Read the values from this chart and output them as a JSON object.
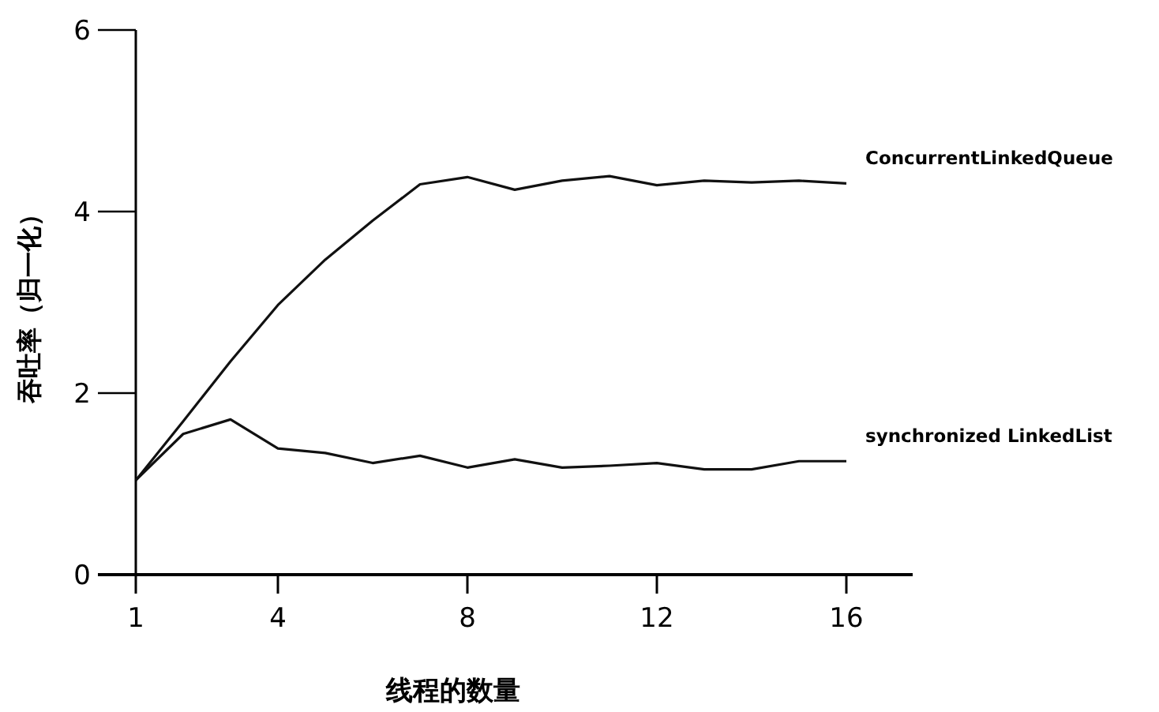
{
  "chart_data": {
    "type": "line",
    "xlabel": "线程的数量",
    "ylabel": "吞吐率（归一化）",
    "x": [
      1,
      2,
      3,
      4,
      5,
      6,
      7,
      8,
      9,
      10,
      11,
      12,
      13,
      14,
      15,
      16
    ],
    "xlim": [
      1,
      17.4
    ],
    "ylim": [
      0,
      6
    ],
    "xticks": [
      1,
      4,
      8,
      12,
      16
    ],
    "yticks": [
      0,
      2,
      4,
      6
    ],
    "grid": false,
    "legend": false,
    "marker": "none",
    "line_style": "solid",
    "series": [
      {
        "name": "ConcurrentLinkedQueue",
        "color": "#111111",
        "values": [
          1.04,
          1.69,
          2.35,
          2.97,
          3.47,
          3.9,
          4.3,
          4.38,
          4.24,
          4.34,
          4.39,
          4.29,
          4.34,
          4.32,
          4.34,
          4.31
        ]
      },
      {
        "name": "synchronized LinkedList",
        "color": "#111111",
        "values": [
          1.04,
          1.55,
          1.71,
          1.39,
          1.34,
          1.23,
          1.31,
          1.18,
          1.27,
          1.18,
          1.2,
          1.23,
          1.16,
          1.16,
          1.25,
          1.25
        ]
      }
    ]
  }
}
